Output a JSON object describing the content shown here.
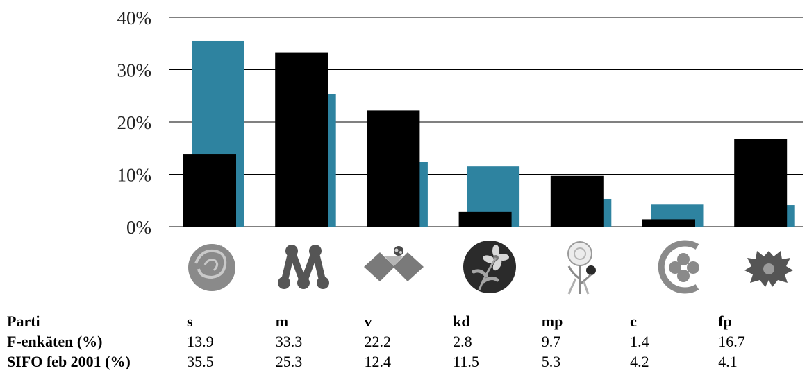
{
  "chart_data": {
    "type": "bar",
    "categories": [
      "s",
      "m",
      "v",
      "kd",
      "mp",
      "c",
      "fp"
    ],
    "series": [
      {
        "name": "F-enkäten (%)",
        "values": [
          13.9,
          33.3,
          22.2,
          2.8,
          9.7,
          1.4,
          16.7
        ],
        "color": "#000000"
      },
      {
        "name": "SIFO feb 2001 (%)",
        "values": [
          35.5,
          25.3,
          12.4,
          11.5,
          5.3,
          4.2,
          4.1
        ],
        "color": "#2e83a0"
      }
    ],
    "ylim": [
      0,
      40
    ],
    "yticks": [
      "0%",
      "10%",
      "20%",
      "30%",
      "40%"
    ],
    "grid": true
  },
  "logos": [
    {
      "party": "s",
      "icon": "rose-icon"
    },
    {
      "party": "m",
      "icon": "m-logo-icon"
    },
    {
      "party": "v",
      "icon": "v-logo-icon"
    },
    {
      "party": "kd",
      "icon": "anemone-icon"
    },
    {
      "party": "mp",
      "icon": "dandelion-icon"
    },
    {
      "party": "c",
      "icon": "clover-icon"
    },
    {
      "party": "fp",
      "icon": "cornflower-icon"
    }
  ],
  "table": {
    "row_headers": [
      "Parti",
      "F-enkäten (%)",
      "SIFO feb 2001 (%)"
    ],
    "parties": [
      "s",
      "m",
      "v",
      "kd",
      "mp",
      "c",
      "fp"
    ],
    "f_enkaten": [
      "13.9",
      "33.3",
      "22.2",
      "2.8",
      "9.7",
      "1.4",
      "16.7"
    ],
    "sifo": [
      "35.5",
      "25.3",
      "12.4",
      "11.5",
      "5.3",
      "4.2",
      "4.1"
    ]
  }
}
